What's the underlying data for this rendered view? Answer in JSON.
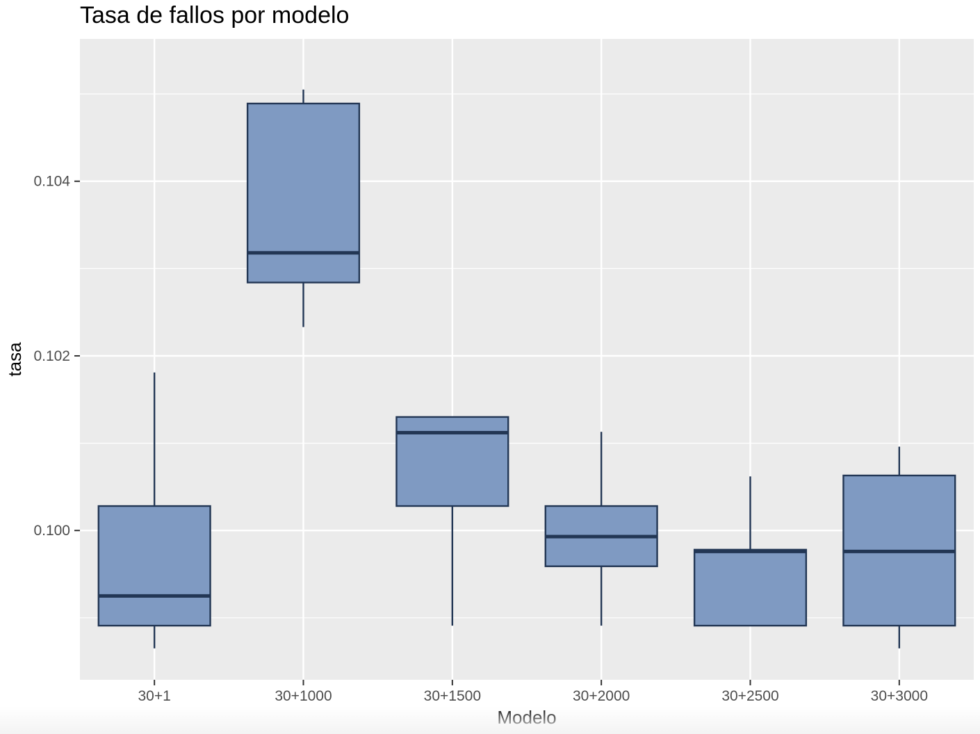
{
  "chart_data": {
    "type": "boxplot",
    "title": "Tasa de fallos por modelo",
    "xlabel": "Modelo",
    "ylabel": "tasa",
    "categories": [
      "30+1",
      "30+1000",
      "30+1500",
      "30+2000",
      "30+2500",
      "30+3000"
    ],
    "y_ticks": [
      0.1,
      0.102,
      0.104
    ],
    "y_tick_labels": [
      "0.100",
      "0.102",
      "0.104"
    ],
    "ylim": [
      0.09829,
      0.10563
    ],
    "grid": true,
    "boxes": [
      {
        "category": "30+1",
        "min": 0.09865,
        "q1": 0.09891,
        "median": 0.09925,
        "q3": 0.10028,
        "max": 0.10181
      },
      {
        "category": "30+1000",
        "min": 0.10233,
        "q1": 0.10284,
        "median": 0.10318,
        "q3": 0.10489,
        "max": 0.10505
      },
      {
        "category": "30+1500",
        "min": 0.09891,
        "q1": 0.10028,
        "median": 0.10112,
        "q3": 0.1013,
        "max": 0.1013
      },
      {
        "category": "30+2000",
        "min": 0.09891,
        "q1": 0.09959,
        "median": 0.09993,
        "q3": 0.10028,
        "max": 0.10113
      },
      {
        "category": "30+2500",
        "min": 0.09891,
        "q1": 0.09891,
        "median": 0.09976,
        "q3": 0.09978,
        "max": 0.10062
      },
      {
        "category": "30+3000",
        "min": 0.09865,
        "q1": 0.09891,
        "median": 0.09976,
        "q3": 0.10063,
        "max": 0.10096
      }
    ],
    "colors": {
      "panel_bg": "#ebebeb",
      "grid": "#ffffff",
      "box_fill": "#7f9ac2",
      "box_stroke": "#223654",
      "tick": "#333333"
    }
  }
}
